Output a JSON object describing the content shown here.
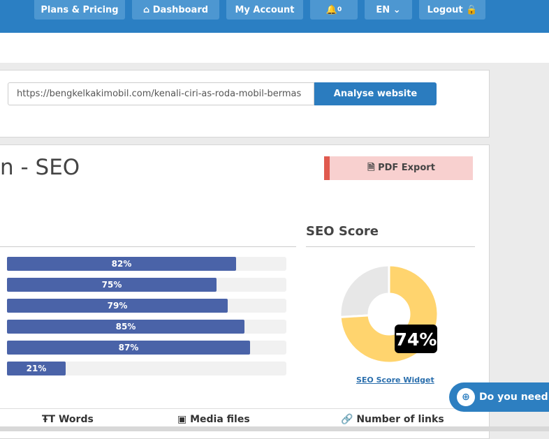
{
  "nav": {
    "items": [
      "Plans & Pricing",
      "Dashboard",
      "My Account",
      "EN",
      "Logout"
    ],
    "notifications": "0"
  },
  "search": {
    "url": "https://bengkelkakimobil.com/kenali-ciri-as-roda-mobil-bermas",
    "button": "Analyse website"
  },
  "report": {
    "title": "n - SEO",
    "export": "PDF Export"
  },
  "bars": {
    "values": [
      82,
      75,
      79,
      85,
      87,
      21
    ],
    "value_labels": [
      "82%",
      "75%",
      "79%",
      "85%",
      "87%",
      "21%"
    ]
  },
  "score": {
    "heading": "SEO Score",
    "value": 74,
    "label": "74%",
    "link": "SEO Score Widget"
  },
  "help": "Do you need h",
  "tabs": [
    "Words",
    "Media files",
    "Number of links"
  ]
}
